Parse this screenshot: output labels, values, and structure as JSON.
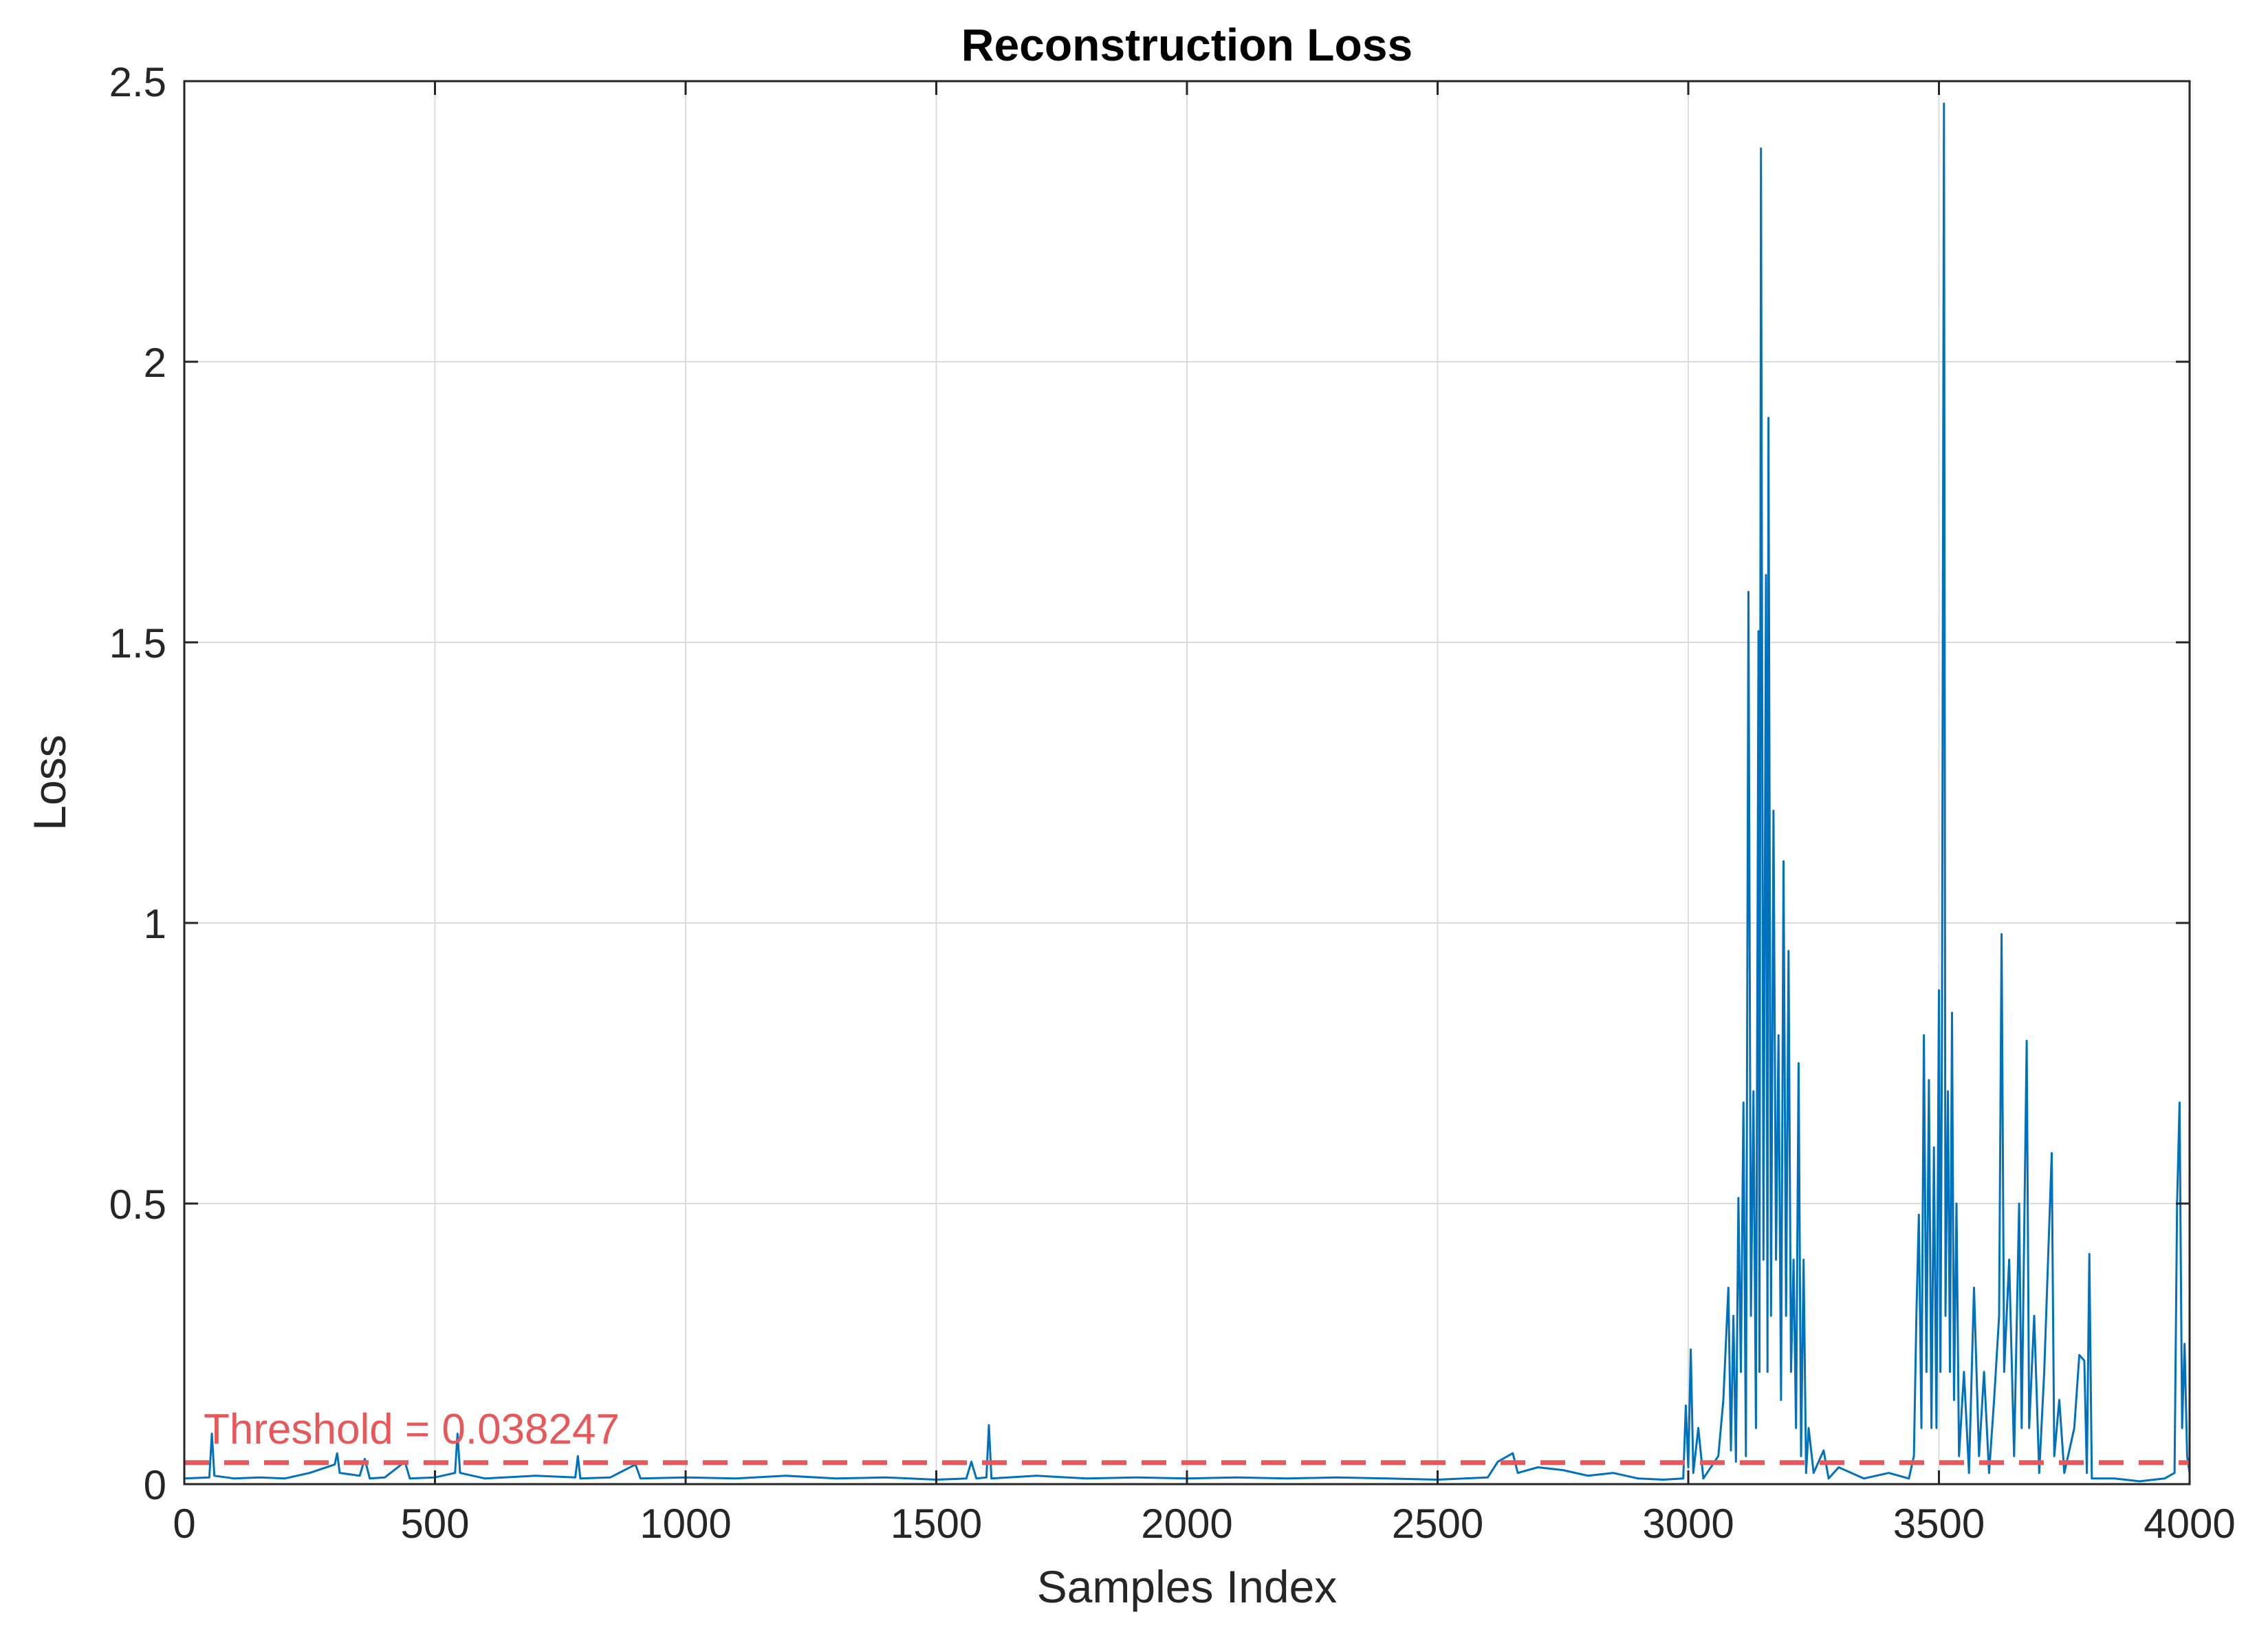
{
  "chart_data": {
    "type": "line",
    "title": "Reconstruction Loss",
    "xlabel": "Samples Index",
    "ylabel": "Loss",
    "xlim": [
      0,
      4000
    ],
    "ylim": [
      0,
      2.5
    ],
    "xticks": [
      0,
      500,
      1000,
      1500,
      2000,
      2500,
      3000,
      3500,
      4000
    ],
    "xtick_labels": [
      "0",
      "500",
      "1000",
      "1500",
      "2000",
      "2500",
      "3000",
      "3500",
      "4000"
    ],
    "yticks": [
      0,
      0.5,
      1,
      1.5,
      2,
      2.5
    ],
    "ytick_labels": [
      "0",
      "0.5",
      "1",
      "1.5",
      "2",
      "2.5"
    ],
    "grid": true,
    "series": [
      {
        "color": "#0072BD",
        "points": [
          [
            0,
            0.01
          ],
          [
            50,
            0.012
          ],
          [
            55,
            0.09
          ],
          [
            60,
            0.015
          ],
          [
            100,
            0.01
          ],
          [
            150,
            0.012
          ],
          [
            200,
            0.01
          ],
          [
            250,
            0.02
          ],
          [
            300,
            0.035
          ],
          [
            305,
            0.055
          ],
          [
            310,
            0.02
          ],
          [
            350,
            0.015
          ],
          [
            360,
            0.045
          ],
          [
            370,
            0.01
          ],
          [
            400,
            0.012
          ],
          [
            440,
            0.04
          ],
          [
            450,
            0.01
          ],
          [
            500,
            0.012
          ],
          [
            540,
            0.02
          ],
          [
            545,
            0.09
          ],
          [
            550,
            0.02
          ],
          [
            600,
            0.01
          ],
          [
            700,
            0.015
          ],
          [
            780,
            0.012
          ],
          [
            785,
            0.05
          ],
          [
            790,
            0.01
          ],
          [
            850,
            0.012
          ],
          [
            900,
            0.035
          ],
          [
            910,
            0.01
          ],
          [
            1000,
            0.012
          ],
          [
            1100,
            0.01
          ],
          [
            1200,
            0.015
          ],
          [
            1300,
            0.01
          ],
          [
            1400,
            0.012
          ],
          [
            1500,
            0.008
          ],
          [
            1560,
            0.01
          ],
          [
            1570,
            0.04
          ],
          [
            1580,
            0.01
          ],
          [
            1600,
            0.012
          ],
          [
            1605,
            0.105
          ],
          [
            1610,
            0.01
          ],
          [
            1700,
            0.015
          ],
          [
            1800,
            0.01
          ],
          [
            1900,
            0.012
          ],
          [
            2000,
            0.01
          ],
          [
            2100,
            0.012
          ],
          [
            2200,
            0.01
          ],
          [
            2300,
            0.012
          ],
          [
            2400,
            0.01
          ],
          [
            2500,
            0.008
          ],
          [
            2600,
            0.012
          ],
          [
            2620,
            0.04
          ],
          [
            2650,
            0.055
          ],
          [
            2660,
            0.02
          ],
          [
            2700,
            0.03
          ],
          [
            2750,
            0.025
          ],
          [
            2800,
            0.015
          ],
          [
            2850,
            0.02
          ],
          [
            2900,
            0.01
          ],
          [
            2950,
            0.008
          ],
          [
            2990,
            0.01
          ],
          [
            2995,
            0.14
          ],
          [
            3000,
            0.03
          ],
          [
            3005,
            0.24
          ],
          [
            3010,
            0.02
          ],
          [
            3020,
            0.1
          ],
          [
            3030,
            0.01
          ],
          [
            3060,
            0.05
          ],
          [
            3070,
            0.15
          ],
          [
            3080,
            0.35
          ],
          [
            3085,
            0.06
          ],
          [
            3090,
            0.3
          ],
          [
            3095,
            0.04
          ],
          [
            3100,
            0.51
          ],
          [
            3105,
            0.2
          ],
          [
            3110,
            0.68
          ],
          [
            3115,
            0.05
          ],
          [
            3120,
            1.59
          ],
          [
            3125,
            0.3
          ],
          [
            3130,
            0.7
          ],
          [
            3135,
            0.1
          ],
          [
            3140,
            1.52
          ],
          [
            3142,
            0.2
          ],
          [
            3145,
            2.38
          ],
          [
            3150,
            0.4
          ],
          [
            3155,
            1.62
          ],
          [
            3158,
            0.2
          ],
          [
            3160,
            1.9
          ],
          [
            3165,
            0.3
          ],
          [
            3170,
            1.2
          ],
          [
            3175,
            0.4
          ],
          [
            3180,
            0.8
          ],
          [
            3185,
            0.15
          ],
          [
            3190,
            1.11
          ],
          [
            3195,
            0.3
          ],
          [
            3200,
            0.95
          ],
          [
            3205,
            0.2
          ],
          [
            3210,
            0.4
          ],
          [
            3215,
            0.1
          ],
          [
            3220,
            0.75
          ],
          [
            3225,
            0.05
          ],
          [
            3230,
            0.4
          ],
          [
            3235,
            0.02
          ],
          [
            3240,
            0.1
          ],
          [
            3250,
            0.02
          ],
          [
            3270,
            0.06
          ],
          [
            3280,
            0.01
          ],
          [
            3300,
            0.03
          ],
          [
            3350,
            0.01
          ],
          [
            3400,
            0.02
          ],
          [
            3440,
            0.01
          ],
          [
            3450,
            0.05
          ],
          [
            3455,
            0.3
          ],
          [
            3460,
            0.48
          ],
          [
            3465,
            0.1
          ],
          [
            3470,
            0.8
          ],
          [
            3475,
            0.2
          ],
          [
            3480,
            0.72
          ],
          [
            3485,
            0.1
          ],
          [
            3490,
            0.6
          ],
          [
            3495,
            0.1
          ],
          [
            3500,
            0.88
          ],
          [
            3503,
            0.2
          ],
          [
            3506,
            0.8
          ],
          [
            3510,
            2.46
          ],
          [
            3513,
            0.3
          ],
          [
            3518,
            0.7
          ],
          [
            3522,
            0.2
          ],
          [
            3526,
            0.84
          ],
          [
            3530,
            0.15
          ],
          [
            3535,
            0.5
          ],
          [
            3540,
            0.05
          ],
          [
            3550,
            0.2
          ],
          [
            3560,
            0.02
          ],
          [
            3570,
            0.35
          ],
          [
            3580,
            0.05
          ],
          [
            3590,
            0.2
          ],
          [
            3600,
            0.02
          ],
          [
            3610,
            0.15
          ],
          [
            3620,
            0.3
          ],
          [
            3625,
            0.98
          ],
          [
            3630,
            0.2
          ],
          [
            3640,
            0.4
          ],
          [
            3650,
            0.05
          ],
          [
            3660,
            0.5
          ],
          [
            3665,
            0.1
          ],
          [
            3675,
            0.79
          ],
          [
            3680,
            0.1
          ],
          [
            3690,
            0.3
          ],
          [
            3700,
            0.02
          ],
          [
            3710,
            0.2
          ],
          [
            3725,
            0.59
          ],
          [
            3730,
            0.05
          ],
          [
            3740,
            0.15
          ],
          [
            3750,
            0.02
          ],
          [
            3770,
            0.1
          ],
          [
            3780,
            0.23
          ],
          [
            3790,
            0.22
          ],
          [
            3795,
            0.02
          ],
          [
            3800,
            0.41
          ],
          [
            3805,
            0.01
          ],
          [
            3850,
            0.01
          ],
          [
            3900,
            0.005
          ],
          [
            3950,
            0.01
          ],
          [
            3970,
            0.02
          ],
          [
            3975,
            0.5
          ],
          [
            3980,
            0.68
          ],
          [
            3985,
            0.1
          ],
          [
            3990,
            0.25
          ],
          [
            3995,
            0.05
          ],
          [
            4000,
            0.02
          ]
        ]
      }
    ],
    "threshold": {
      "value": 0.038247,
      "label": "Threshold = 0.038247",
      "color": "#E8575A",
      "style": "dashed"
    }
  }
}
